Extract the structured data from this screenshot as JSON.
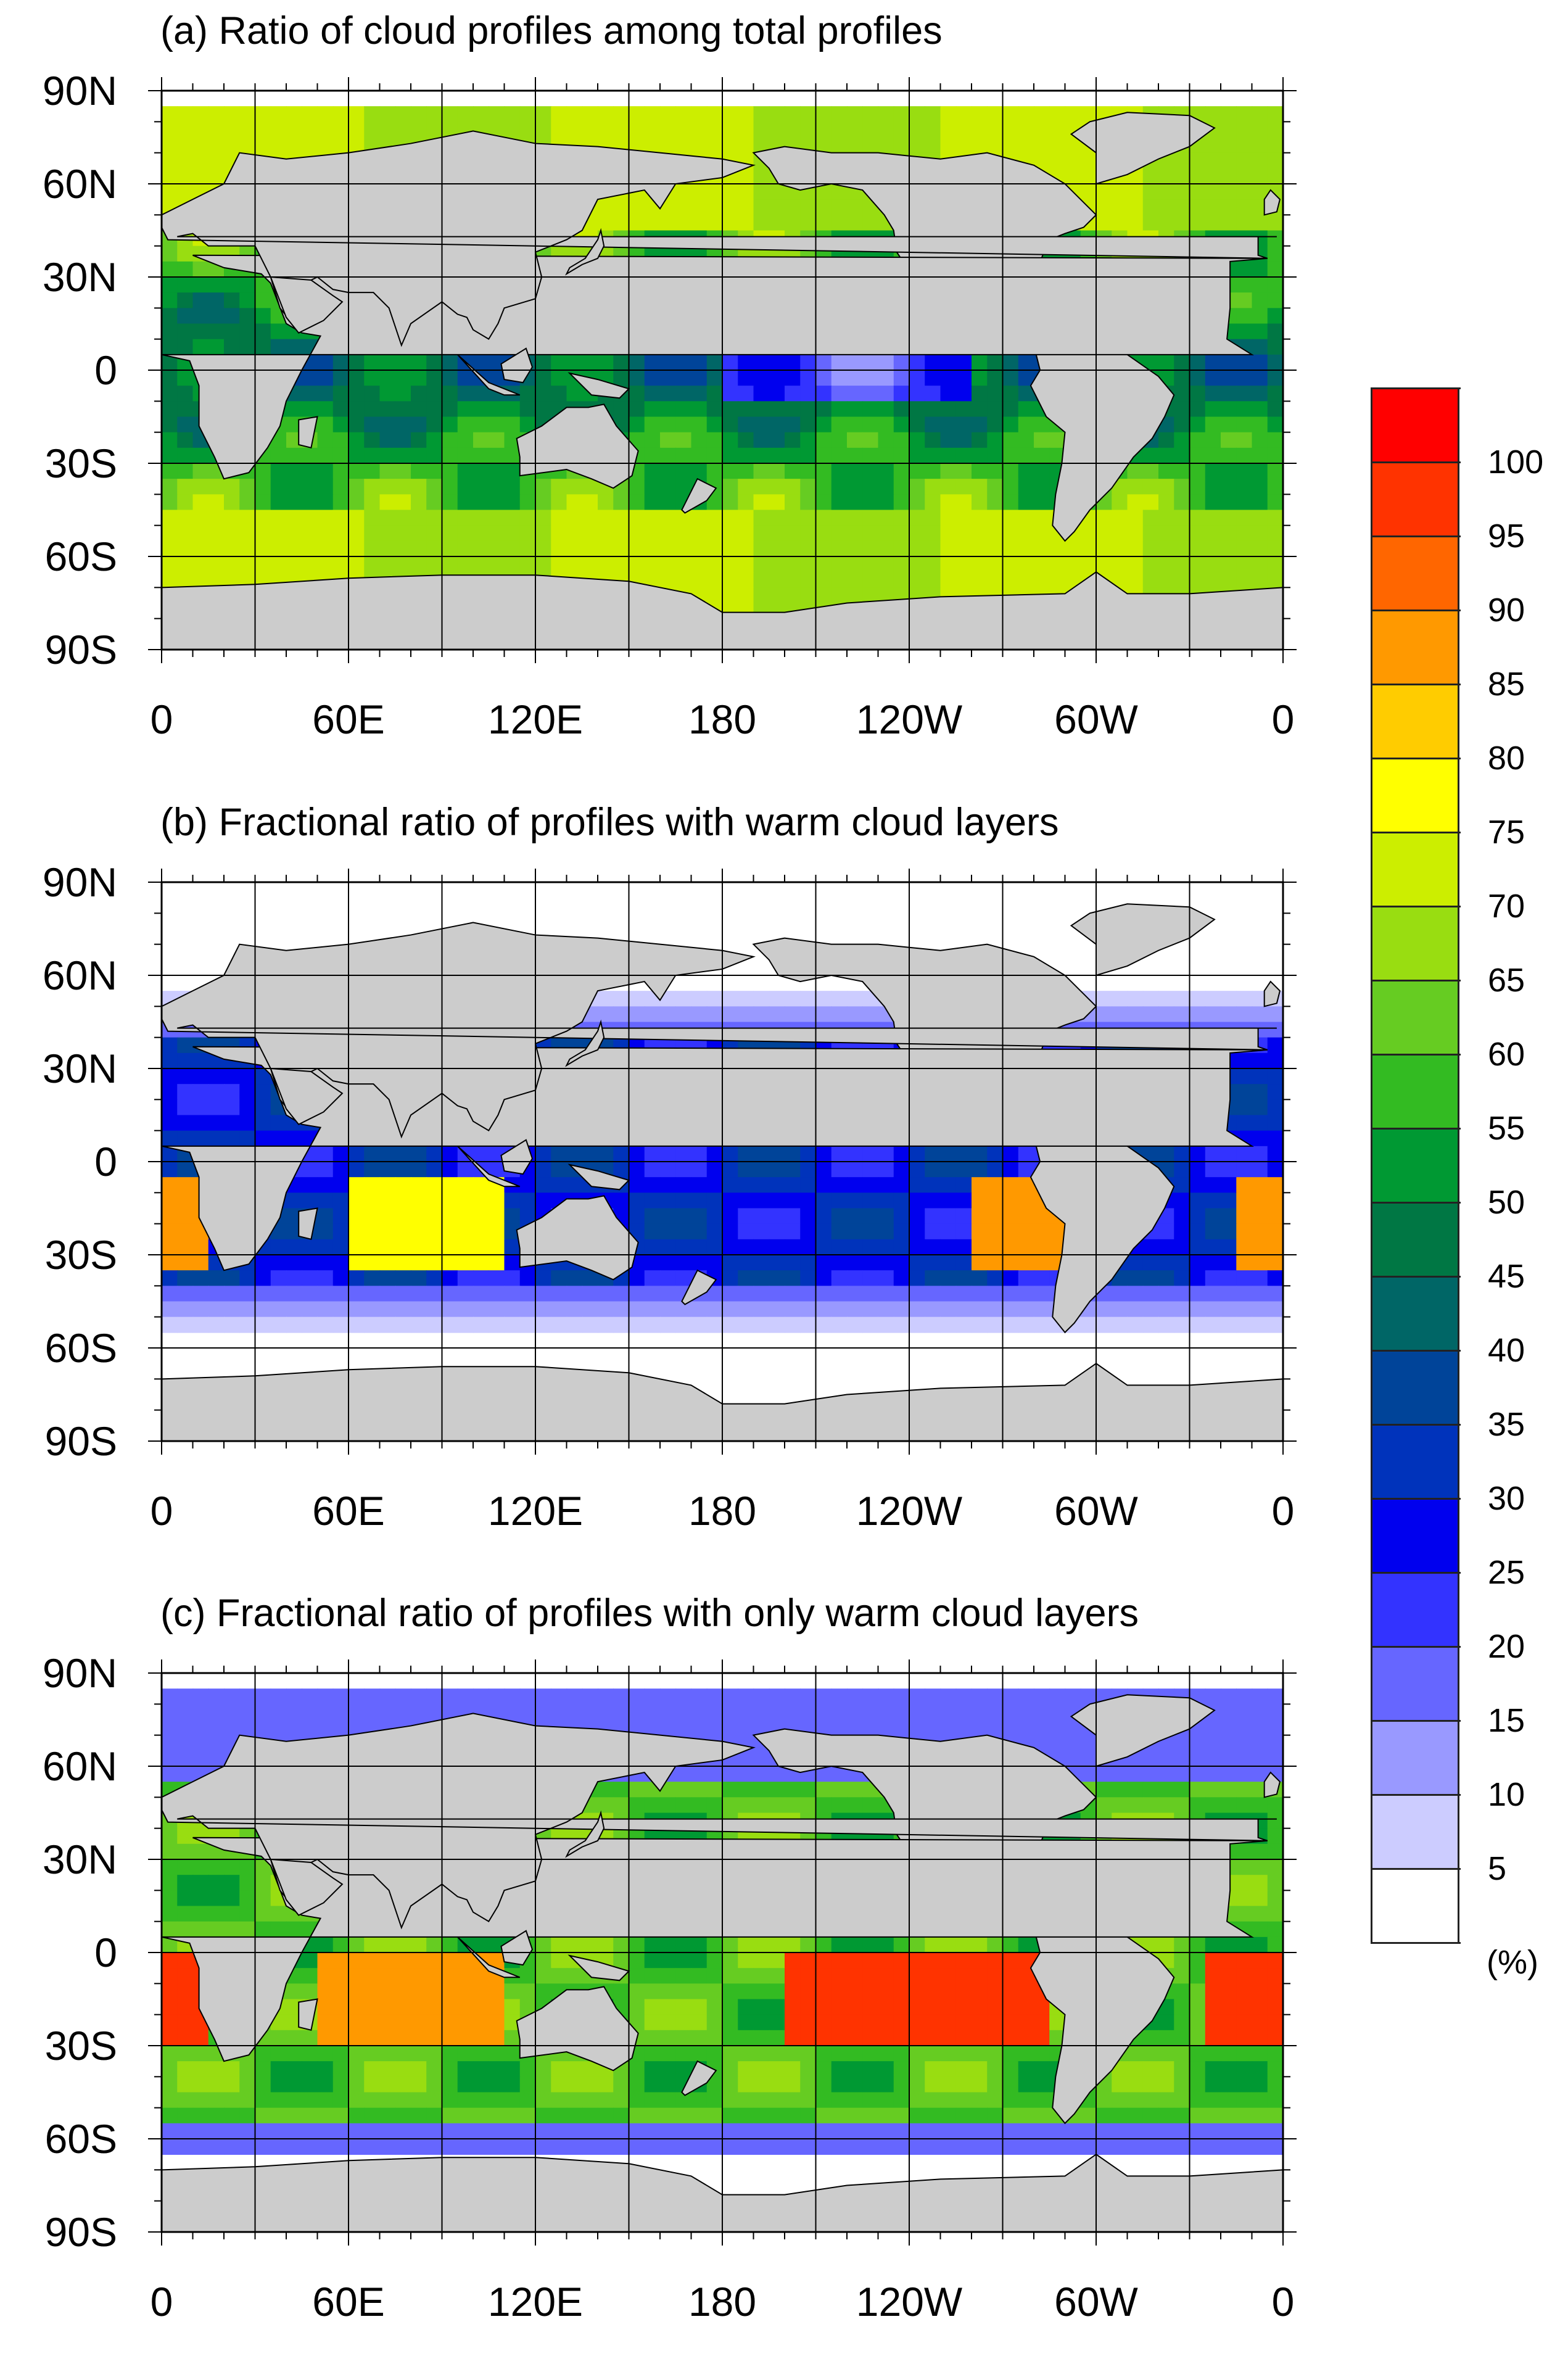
{
  "panels": [
    {
      "id": "a",
      "title": "(a) Ratio of cloud profiles among total profiles",
      "lat_labels": [
        "90N",
        "60N",
        "30N",
        "0",
        "30S",
        "60S",
        "90S"
      ],
      "lon_labels": [
        "0",
        "60E",
        "120E",
        "180",
        "120W",
        "60W",
        "0"
      ]
    },
    {
      "id": "b",
      "title": "(b) Fractional ratio of profiles with warm cloud layers",
      "lat_labels": [
        "90N",
        "60N",
        "30N",
        "0",
        "30S",
        "60S",
        "90S"
      ],
      "lon_labels": [
        "0",
        "60E",
        "120E",
        "180",
        "120W",
        "60W",
        "0"
      ]
    },
    {
      "id": "c",
      "title": "(c) Fractional ratio of profiles with only warm cloud layers",
      "lat_labels": [
        "90N",
        "60N",
        "30N",
        "0",
        "30S",
        "60S",
        "90S"
      ],
      "lon_labels": [
        "0",
        "60E",
        "120E",
        "180",
        "120W",
        "60W",
        "0"
      ]
    }
  ],
  "colorbar": {
    "unit": "(%)",
    "levels": [
      "100",
      "95",
      "90",
      "85",
      "80",
      "75",
      "70",
      "65",
      "60",
      "55",
      "50",
      "45",
      "40",
      "35",
      "30",
      "25",
      "20",
      "15",
      "10",
      "5"
    ],
    "colors": [
      "#ff0000",
      "#ff3300",
      "#ff6600",
      "#ff9900",
      "#ffcc00",
      "#ffff00",
      "#ccee00",
      "#99dd11",
      "#66cc22",
      "#33bb22",
      "#009933",
      "#007744",
      "#006666",
      "#004499",
      "#0033bb",
      "#0000ee",
      "#3333ff",
      "#6666ff",
      "#9999ff",
      "#ccccff",
      "#ffffff"
    ]
  },
  "colors": {
    "land": "#cccccc",
    "no_data": "#ffffff",
    "coastline": "#000000",
    "grid": "#000000"
  }
}
